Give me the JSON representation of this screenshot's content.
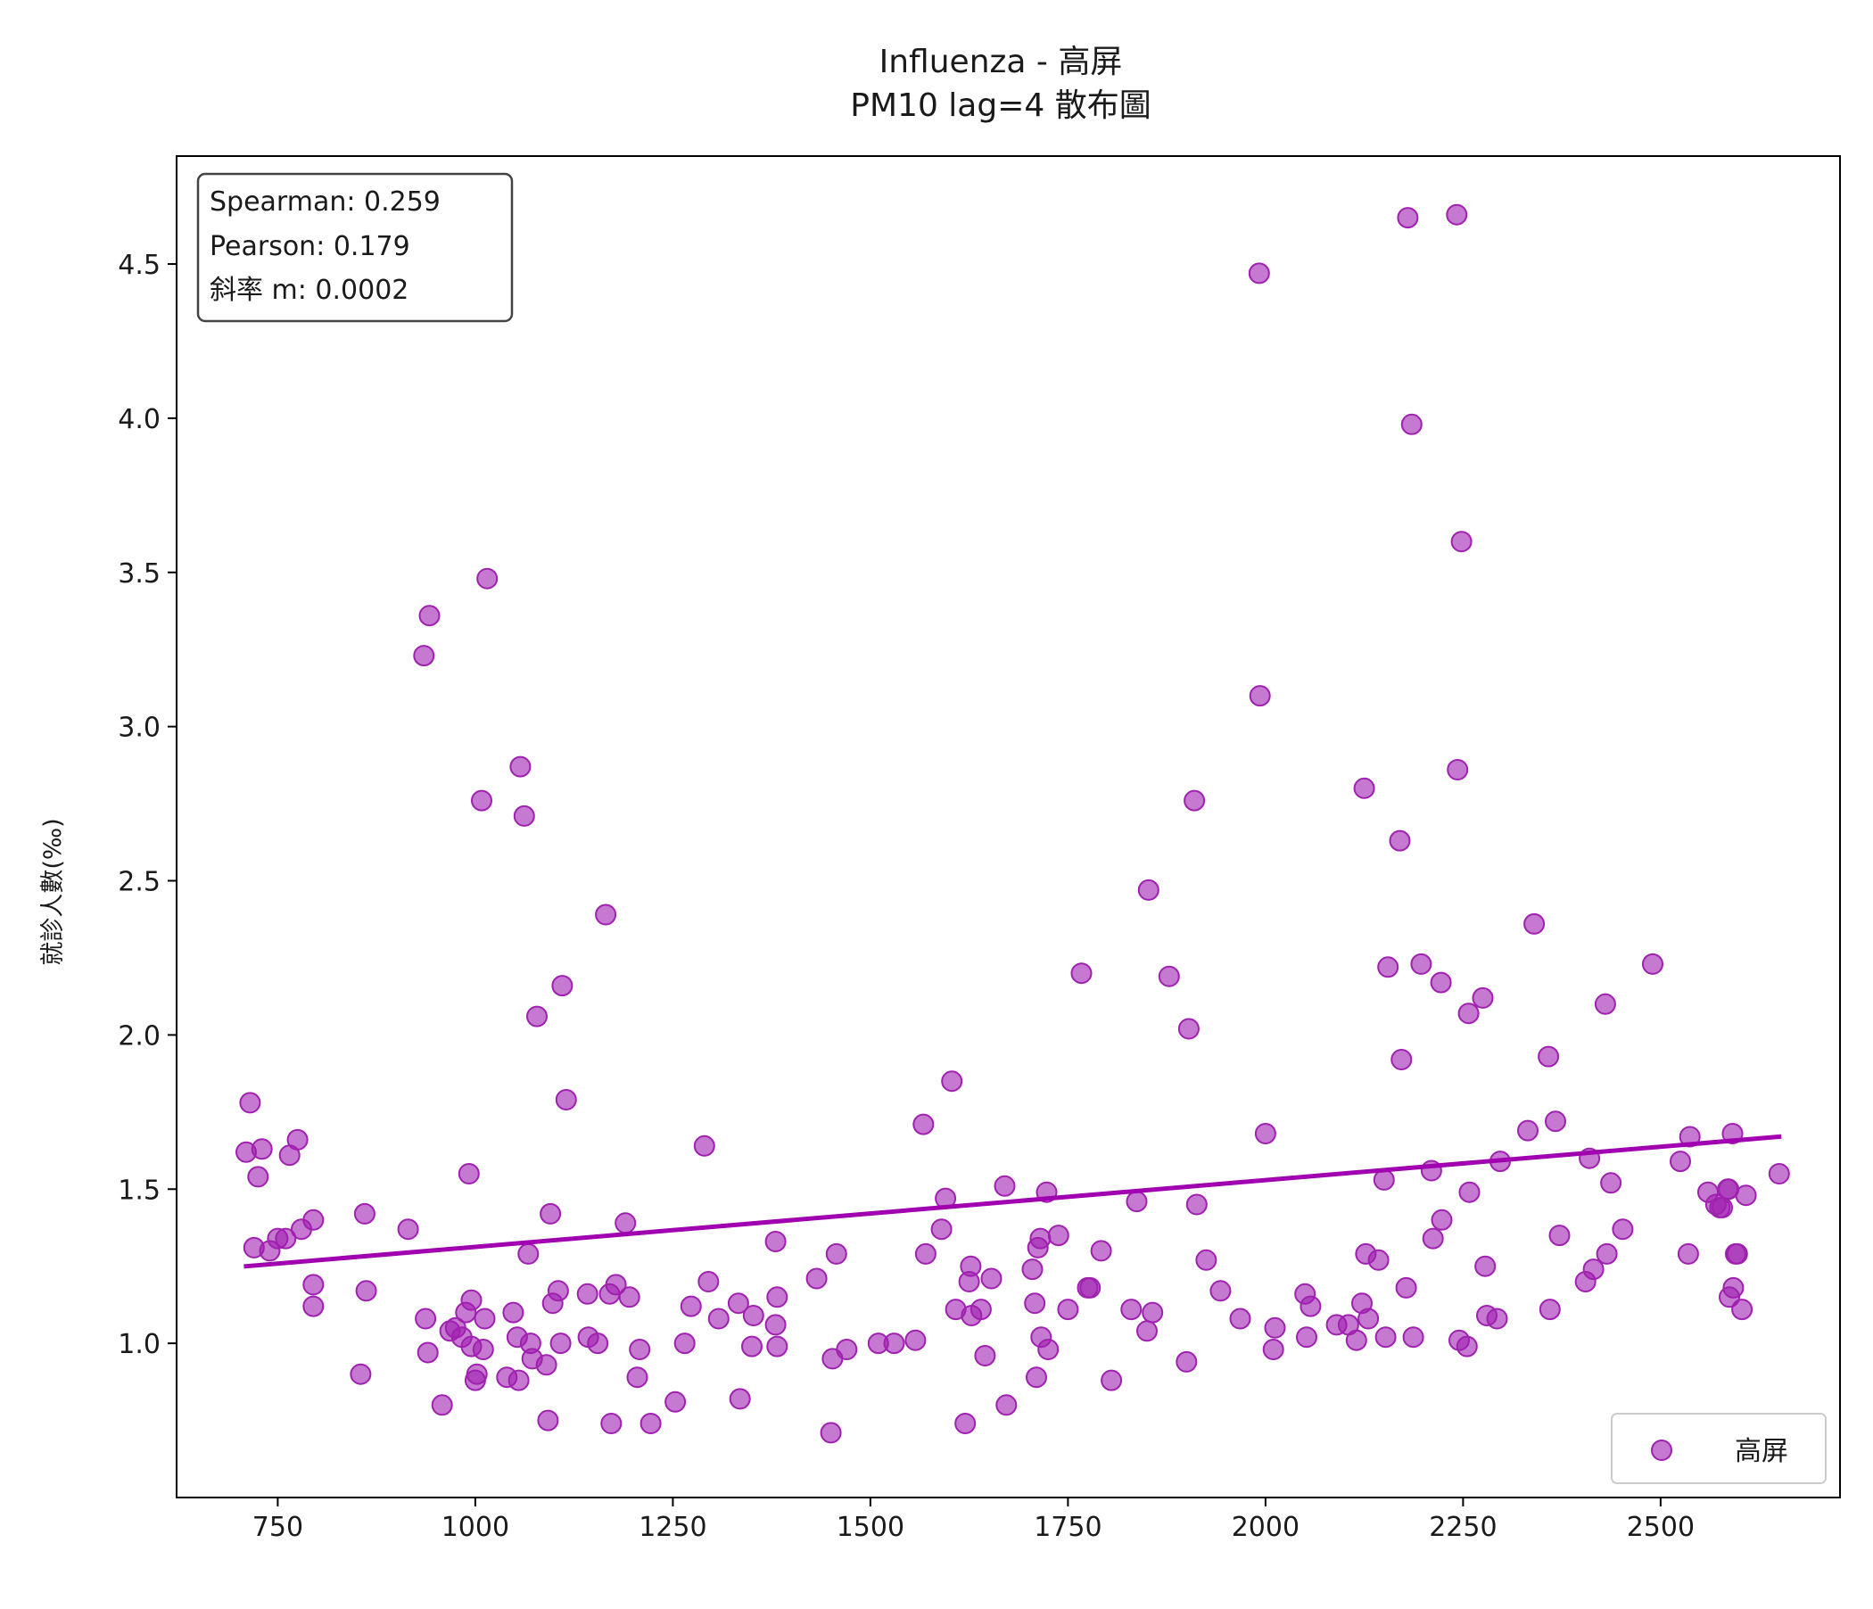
{
  "chart_data": {
    "type": "scatter",
    "title": "Influenza - 高屏",
    "subtitle": "PM10 lag=4 散布圖",
    "xlabel": "",
    "ylabel": "就診人數(‰)",
    "xlim": [
      622,
      2727
    ],
    "ylim": [
      0.5,
      4.85
    ],
    "x_ticks": [
      750,
      1000,
      1250,
      1500,
      1750,
      2000,
      2250,
      2500
    ],
    "y_ticks": [
      1.0,
      1.5,
      2.0,
      2.5,
      3.0,
      3.5,
      4.0,
      4.5
    ],
    "x_tick_labels": [
      "750",
      "1000",
      "1250",
      "1500",
      "1750",
      "2000",
      "2250",
      "2500"
    ],
    "y_tick_labels": [
      "1.0",
      "1.5",
      "2.0",
      "2.5",
      "3.0",
      "3.5",
      "4.0",
      "4.5"
    ],
    "grid": false,
    "legend_position": "lower-right",
    "stats": {
      "spearman": "Spearman: 0.259",
      "pearson": "Pearson: 0.179",
      "slope": "斜率 m: 0.0002"
    },
    "series": [
      {
        "name": "高屏",
        "color": "#a020b0",
        "points": [
          [
            710,
            1.62
          ],
          [
            715,
            1.78
          ],
          [
            720,
            1.31
          ],
          [
            725,
            1.54
          ],
          [
            730,
            1.63
          ],
          [
            740,
            1.3
          ],
          [
            750,
            1.34
          ],
          [
            760,
            1.34
          ],
          [
            765,
            1.61
          ],
          [
            775,
            1.66
          ],
          [
            780,
            1.37
          ],
          [
            795,
            1.4
          ],
          [
            795,
            1.19
          ],
          [
            795,
            1.12
          ],
          [
            855,
            0.9
          ],
          [
            860,
            1.42
          ],
          [
            862,
            1.17
          ],
          [
            915,
            1.37
          ],
          [
            935,
            3.23
          ],
          [
            937,
            1.08
          ],
          [
            940,
            0.97
          ],
          [
            942,
            3.36
          ],
          [
            958,
            0.8
          ],
          [
            968,
            1.04
          ],
          [
            975,
            1.05
          ],
          [
            983,
            1.02
          ],
          [
            988,
            1.1
          ],
          [
            992,
            1.55
          ],
          [
            995,
            1.14
          ],
          [
            995,
            0.99
          ],
          [
            1000,
            0.88
          ],
          [
            1002,
            0.9
          ],
          [
            1008,
            2.76
          ],
          [
            1010,
            0.98
          ],
          [
            1012,
            1.08
          ],
          [
            1015,
            3.48
          ],
          [
            1040,
            0.89
          ],
          [
            1048,
            1.1
          ],
          [
            1053,
            1.02
          ],
          [
            1055,
            0.88
          ],
          [
            1057,
            2.87
          ],
          [
            1062,
            2.71
          ],
          [
            1067,
            1.29
          ],
          [
            1070,
            1.0
          ],
          [
            1072,
            0.95
          ],
          [
            1078,
            2.06
          ],
          [
            1090,
            0.93
          ],
          [
            1092,
            0.75
          ],
          [
            1095,
            1.42
          ],
          [
            1098,
            1.13
          ],
          [
            1105,
            1.17
          ],
          [
            1108,
            1.0
          ],
          [
            1110,
            2.16
          ],
          [
            1115,
            1.79
          ],
          [
            1142,
            1.16
          ],
          [
            1143,
            1.02
          ],
          [
            1155,
            1.0
          ],
          [
            1165,
            2.39
          ],
          [
            1170,
            1.16
          ],
          [
            1172,
            0.74
          ],
          [
            1178,
            1.19
          ],
          [
            1190,
            1.39
          ],
          [
            1195,
            1.15
          ],
          [
            1205,
            0.89
          ],
          [
            1208,
            0.98
          ],
          [
            1222,
            0.74
          ],
          [
            1253,
            0.81
          ],
          [
            1265,
            1.0
          ],
          [
            1273,
            1.12
          ],
          [
            1290,
            1.64
          ],
          [
            1295,
            1.2
          ],
          [
            1308,
            1.08
          ],
          [
            1333,
            1.13
          ],
          [
            1335,
            0.82
          ],
          [
            1350,
            0.99
          ],
          [
            1352,
            1.09
          ],
          [
            1380,
            1.33
          ],
          [
            1380,
            1.06
          ],
          [
            1382,
            1.15
          ],
          [
            1382,
            0.99
          ],
          [
            1432,
            1.21
          ],
          [
            1450,
            0.71
          ],
          [
            1452,
            0.95
          ],
          [
            1457,
            1.29
          ],
          [
            1470,
            0.98
          ],
          [
            1510,
            1.0
          ],
          [
            1530,
            1.0
          ],
          [
            1557,
            1.01
          ],
          [
            1567,
            1.71
          ],
          [
            1570,
            1.29
          ],
          [
            1590,
            1.37
          ],
          [
            1595,
            1.47
          ],
          [
            1603,
            1.85
          ],
          [
            1608,
            1.11
          ],
          [
            1620,
            0.74
          ],
          [
            1625,
            1.2
          ],
          [
            1627,
            1.25
          ],
          [
            1628,
            1.09
          ],
          [
            1640,
            1.11
          ],
          [
            1645,
            0.96
          ],
          [
            1653,
            1.21
          ],
          [
            1670,
            1.51
          ],
          [
            1672,
            0.8
          ],
          [
            1705,
            1.24
          ],
          [
            1708,
            1.13
          ],
          [
            1710,
            0.89
          ],
          [
            1712,
            1.31
          ],
          [
            1715,
            1.34
          ],
          [
            1716,
            1.02
          ],
          [
            1723,
            1.49
          ],
          [
            1725,
            0.98
          ],
          [
            1738,
            1.35
          ],
          [
            1750,
            1.11
          ],
          [
            1767,
            2.2
          ],
          [
            1775,
            1.18
          ],
          [
            1778,
            1.18
          ],
          [
            1792,
            1.3
          ],
          [
            1805,
            0.88
          ],
          [
            1830,
            1.11
          ],
          [
            1837,
            1.46
          ],
          [
            1850,
            1.04
          ],
          [
            1852,
            2.47
          ],
          [
            1857,
            1.1
          ],
          [
            1878,
            2.19
          ],
          [
            1900,
            0.94
          ],
          [
            1903,
            2.02
          ],
          [
            1910,
            2.76
          ],
          [
            1913,
            1.45
          ],
          [
            1925,
            1.27
          ],
          [
            1943,
            1.17
          ],
          [
            1968,
            1.08
          ],
          [
            1992,
            4.47
          ],
          [
            1993,
            3.1
          ],
          [
            2000,
            1.68
          ],
          [
            2010,
            0.98
          ],
          [
            2012,
            1.05
          ],
          [
            2050,
            1.16
          ],
          [
            2052,
            1.02
          ],
          [
            2057,
            1.12
          ],
          [
            2090,
            1.06
          ],
          [
            2105,
            1.06
          ],
          [
            2115,
            1.01
          ],
          [
            2122,
            1.13
          ],
          [
            2125,
            2.8
          ],
          [
            2127,
            1.29
          ],
          [
            2130,
            1.08
          ],
          [
            2143,
            1.27
          ],
          [
            2150,
            1.53
          ],
          [
            2152,
            1.02
          ],
          [
            2155,
            2.22
          ],
          [
            2170,
            2.63
          ],
          [
            2172,
            1.92
          ],
          [
            2178,
            1.18
          ],
          [
            2180,
            4.65
          ],
          [
            2185,
            3.98
          ],
          [
            2187,
            1.02
          ],
          [
            2197,
            2.23
          ],
          [
            2210,
            1.56
          ],
          [
            2212,
            1.34
          ],
          [
            2222,
            2.17
          ],
          [
            2223,
            1.4
          ],
          [
            2242,
            4.66
          ],
          [
            2243,
            2.86
          ],
          [
            2245,
            1.01
          ],
          [
            2248,
            3.6
          ],
          [
            2255,
            0.99
          ],
          [
            2257,
            2.07
          ],
          [
            2258,
            1.49
          ],
          [
            2275,
            2.12
          ],
          [
            2278,
            1.25
          ],
          [
            2280,
            1.09
          ],
          [
            2293,
            1.08
          ],
          [
            2297,
            1.59
          ],
          [
            2332,
            1.69
          ],
          [
            2340,
            2.36
          ],
          [
            2358,
            1.93
          ],
          [
            2360,
            1.11
          ],
          [
            2367,
            1.72
          ],
          [
            2372,
            1.35
          ],
          [
            2405,
            1.2
          ],
          [
            2410,
            1.6
          ],
          [
            2415,
            1.24
          ],
          [
            2430,
            2.1
          ],
          [
            2432,
            1.29
          ],
          [
            2437,
            1.52
          ],
          [
            2452,
            1.37
          ],
          [
            2490,
            2.23
          ],
          [
            2525,
            1.59
          ],
          [
            2535,
            1.29
          ],
          [
            2537,
            1.67
          ],
          [
            2560,
            1.49
          ],
          [
            2570,
            1.45
          ],
          [
            2575,
            1.44
          ],
          [
            2578,
            1.44
          ],
          [
            2585,
            1.5
          ],
          [
            2586,
            1.5
          ],
          [
            2587,
            1.15
          ],
          [
            2591,
            1.68
          ],
          [
            2592,
            1.18
          ],
          [
            2595,
            1.29
          ],
          [
            2597,
            1.29
          ],
          [
            2603,
            1.11
          ],
          [
            2608,
            1.48
          ],
          [
            2650,
            1.55
          ]
        ]
      }
    ],
    "trendline": {
      "x": [
        710,
        2650
      ],
      "y": [
        1.25,
        1.67
      ],
      "color": "#a000b0"
    }
  }
}
